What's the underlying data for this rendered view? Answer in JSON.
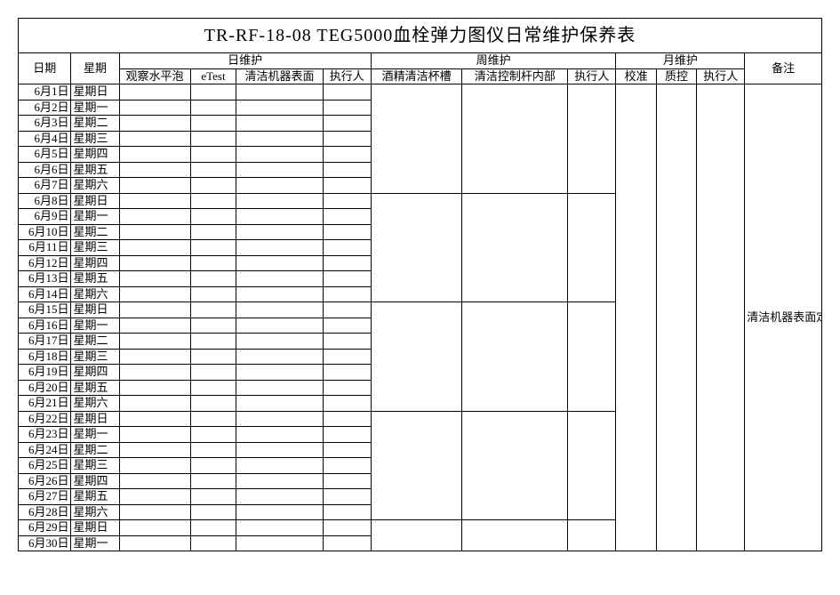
{
  "title": "TR-RF-18-08 TEG5000血栓弹力图仪日常维护保养表",
  "hdr": {
    "date": "日期",
    "week": "星期",
    "daily": "日维护",
    "weekly": "周维护",
    "monthly": "月维护",
    "remark": "备注",
    "c1": "观察水平泡",
    "c2": "eTest",
    "c3": "清洁机器表面",
    "c4": "执行人",
    "c5": "酒精清洁杯槽",
    "c6": "清洁控制杆内部",
    "c7": "执行人",
    "c8": "校准",
    "c9": "质控",
    "c10": "执行人"
  },
  "remark_text": "清洁机器表面定于每天下班前执行；每周周维护定于每周五下班前执行",
  "rows": [
    {
      "date": "6月1日",
      "week": "星期日"
    },
    {
      "date": "6月2日",
      "week": "星期一"
    },
    {
      "date": "6月3日",
      "week": "星期二"
    },
    {
      "date": "6月4日",
      "week": "星期三"
    },
    {
      "date": "6月5日",
      "week": "星期四"
    },
    {
      "date": "6月6日",
      "week": "星期五"
    },
    {
      "date": "6月7日",
      "week": "星期六"
    },
    {
      "date": "6月8日",
      "week": "星期日"
    },
    {
      "date": "6月9日",
      "week": "星期一"
    },
    {
      "date": "6月10日",
      "week": "星期二"
    },
    {
      "date": "6月11日",
      "week": "星期三"
    },
    {
      "date": "6月12日",
      "week": "星期四"
    },
    {
      "date": "6月13日",
      "week": "星期五"
    },
    {
      "date": "6月14日",
      "week": "星期六"
    },
    {
      "date": "6月15日",
      "week": "星期日"
    },
    {
      "date": "6月16日",
      "week": "星期一"
    },
    {
      "date": "6月17日",
      "week": "星期二"
    },
    {
      "date": "6月18日",
      "week": "星期三"
    },
    {
      "date": "6月19日",
      "week": "星期四"
    },
    {
      "date": "6月20日",
      "week": "星期五"
    },
    {
      "date": "6月21日",
      "week": "星期六"
    },
    {
      "date": "6月22日",
      "week": "星期日"
    },
    {
      "date": "6月23日",
      "week": "星期一"
    },
    {
      "date": "6月24日",
      "week": "星期二"
    },
    {
      "date": "6月25日",
      "week": "星期三"
    },
    {
      "date": "6月26日",
      "week": "星期四"
    },
    {
      "date": "6月27日",
      "week": "星期五"
    },
    {
      "date": "6月28日",
      "week": "星期六"
    },
    {
      "date": "6月29日",
      "week": "星期日"
    },
    {
      "date": "6月30日",
      "week": "星期一"
    }
  ],
  "weekly_groups": [
    7,
    7,
    7,
    7,
    2
  ],
  "monthly_group": 30
}
